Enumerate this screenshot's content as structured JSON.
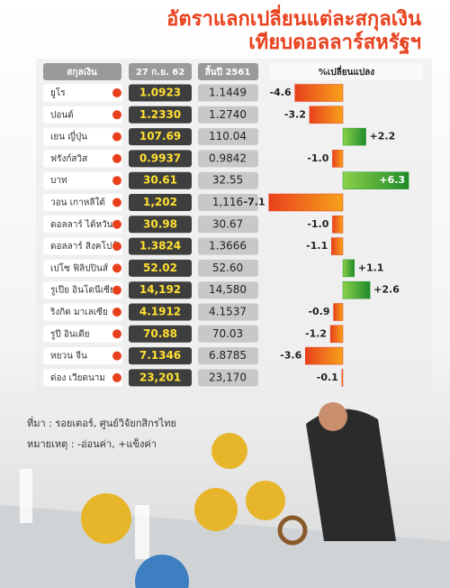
{
  "chart_data": {
    "type": "bar",
    "title": [
      "อัตราแลกเปลี่ยนแต่ละสกุลเงิน",
      "เทียบดอลลาร์สหรัฐฯ"
    ],
    "columns": [
      "สกุลเงิน",
      "27 ก.ย. 62",
      "สิ้นปี 2561",
      "%เปลี่ยนแปลง"
    ],
    "categories": [
      "ยูโร",
      "ปอนด์",
      "เยน ญี่ปุ่น",
      "ฟรังก์สวิส",
      "บาท",
      "วอน เกาหลีใต้",
      "ดอลลาร์ ไต้หวัน",
      "ดอลลาร์ สิงคโปร์",
      "เปโซ ฟิลิปปินส์",
      "รูเปีย อินโดนีเซีย",
      "ริงกิต มาเลเซีย",
      "รูปี อินเดีย",
      "หยวน จีน",
      "ด่อง เวียดนาม"
    ],
    "rate_current": [
      "1.0923",
      "1.2330",
      "107.69",
      "0.9937",
      "30.61",
      "1,202",
      "30.98",
      "1.3824",
      "52.02",
      "14,192",
      "4.1912",
      "70.88",
      "7.1346",
      "23,201"
    ],
    "rate_year_end": [
      "1.1449",
      "1.2740",
      "110.04",
      "0.9842",
      "32.55",
      "1,116",
      "30.67",
      "1.3666",
      "52.60",
      "14,580",
      "4.1537",
      "70.03",
      "6.8785",
      "23,170"
    ],
    "values": [
      -4.6,
      -3.2,
      2.2,
      -1.0,
      6.3,
      -7.1,
      -1.0,
      -1.1,
      1.1,
      2.6,
      -0.9,
      -1.2,
      -3.6,
      -0.1
    ],
    "value_labels": [
      "-4.6",
      "-3.2",
      "+2.2",
      "-1.0",
      "+6.3",
      "-7.1",
      "-1.0",
      "-1.1",
      "+1.1",
      "+2.6",
      "-0.9",
      "-1.2",
      "-3.6",
      "-0.1"
    ],
    "negative_color": "#e8401c",
    "positive_color": "#2e9a2e",
    "source": "ที่มา : รอยเตอร์, ศูนย์วิจัยกสิกรไทย",
    "note": "หมายเหตุ : -อ่อนค่า, +แข็งค่า"
  }
}
